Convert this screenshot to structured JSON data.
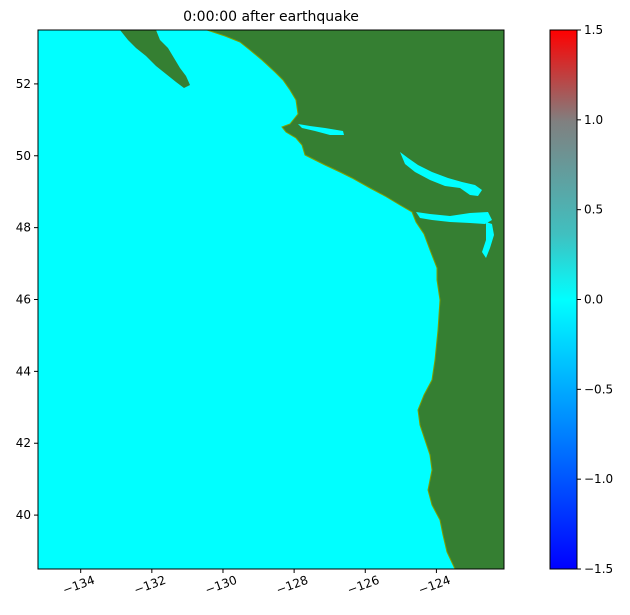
{
  "chart_data": {
    "type": "heatmap",
    "title": "0:00:00 after earthquake",
    "xlim": [
      -135.2,
      -122.1
    ],
    "ylim": [
      38.5,
      53.5
    ],
    "xticks": [
      "−134",
      "−132",
      "−130",
      "−128",
      "−126",
      "−124"
    ],
    "xtick_values": [
      -134,
      -132,
      -130,
      -128,
      -126,
      -124
    ],
    "yticks": [
      "40",
      "42",
      "44",
      "46",
      "48",
      "50",
      "52"
    ],
    "ytick_values": [
      40,
      42,
      44,
      46,
      48,
      50,
      52
    ],
    "colorbar": {
      "range": [
        -1.5,
        1.5
      ],
      "ticks": [
        "−1.5",
        "−1.0",
        "−0.5",
        "0.0",
        "0.5",
        "1.0",
        "1.5"
      ],
      "tick_values": [
        -1.5,
        -1.0,
        -0.5,
        0.0,
        0.5,
        1.0,
        1.5
      ],
      "colors": [
        "#0000ff",
        "#0080ff",
        "#00ffff",
        "#40c0c0",
        "#808080",
        "#ff0000"
      ]
    },
    "colors": {
      "ocean": "#00ffff",
      "land": "#357f32",
      "shore": "#7fa000"
    }
  }
}
